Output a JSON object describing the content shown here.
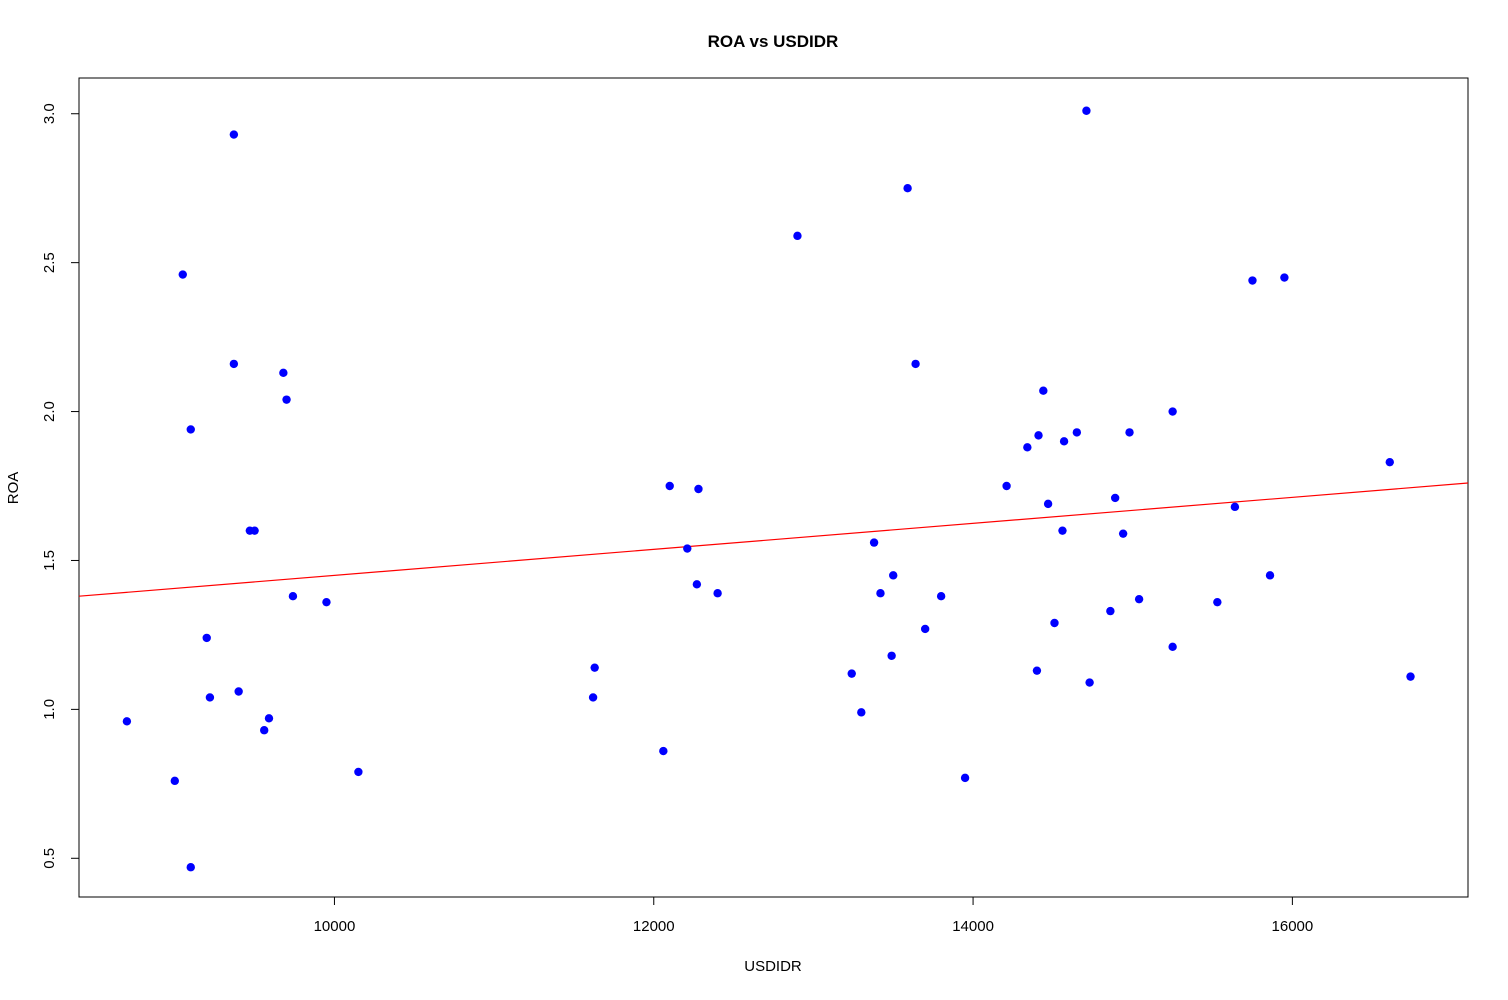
{
  "chart_data": {
    "type": "scatter",
    "title": "ROA vs USDIDR",
    "xlabel": "USDIDR",
    "ylabel": "ROA",
    "xlim": [
      8400,
      17100
    ],
    "ylim": [
      0.37,
      3.12
    ],
    "x_ticks": [
      10000,
      12000,
      14000,
      16000
    ],
    "y_ticks": [
      0.5,
      1.0,
      1.5,
      2.0,
      2.5,
      3.0
    ],
    "x_tick_labels": [
      "10000",
      "12000",
      "14000",
      "16000"
    ],
    "y_tick_labels": [
      "0.5",
      "1.0",
      "1.5",
      "2.0",
      "2.5",
      "3.0"
    ],
    "grid": false,
    "point_color": "#0000ff",
    "trend_line": {
      "color": "#ff0000",
      "x": [
        8400,
        17100
      ],
      "y": [
        1.38,
        1.76
      ]
    },
    "series": [
      {
        "x": [
          8700,
          9000,
          9050,
          9100,
          9100,
          9200,
          9220,
          9370,
          9370,
          9400,
          9470,
          9500,
          9560,
          9590,
          9680,
          9700,
          9740,
          9950,
          10150,
          11620,
          11630,
          12060,
          12100,
          12210,
          12270,
          12280,
          12400,
          12900,
          13240,
          13300,
          13380,
          13420,
          13490,
          13500,
          13590,
          13640,
          13700,
          13800,
          13950,
          14210,
          14340,
          14400,
          14410,
          14440,
          14470,
          14510,
          14560,
          14570,
          14650,
          14710,
          14730,
          14860,
          14890,
          14940,
          14980,
          15040,
          15250,
          15250,
          15530,
          15640,
          15750,
          15860,
          15950,
          16610,
          16740
        ],
        "y": [
          0.96,
          0.76,
          2.46,
          1.94,
          0.47,
          1.24,
          1.04,
          2.93,
          2.16,
          1.06,
          1.6,
          1.6,
          0.93,
          0.97,
          2.13,
          2.04,
          1.38,
          1.36,
          0.79,
          1.04,
          1.14,
          0.86,
          1.75,
          1.54,
          1.42,
          1.74,
          1.39,
          2.59,
          1.12,
          0.99,
          1.56,
          1.39,
          1.18,
          1.45,
          2.75,
          2.16,
          1.27,
          1.38,
          0.77,
          1.75,
          1.88,
          1.13,
          1.92,
          2.07,
          1.69,
          1.29,
          1.6,
          1.9,
          1.93,
          3.01,
          1.09,
          1.33,
          1.71,
          1.59,
          1.93,
          1.37,
          1.21,
          2.0,
          1.36,
          1.68,
          2.44,
          1.45,
          2.45,
          1.83,
          1.11
        ]
      }
    ]
  }
}
